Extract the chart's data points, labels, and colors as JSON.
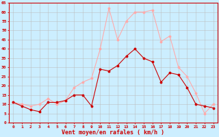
{
  "hours": [
    0,
    1,
    2,
    3,
    4,
    5,
    6,
    7,
    8,
    9,
    10,
    11,
    12,
    13,
    14,
    15,
    16,
    17,
    18,
    19,
    20,
    21,
    22,
    23
  ],
  "wind_mean": [
    11,
    9,
    7,
    6,
    11,
    11,
    12,
    15,
    15,
    9,
    29,
    28,
    31,
    36,
    40,
    35,
    33,
    22,
    27,
    26,
    19,
    10,
    9,
    8
  ],
  "wind_gust": [
    11,
    10,
    9,
    10,
    13,
    10,
    12,
    19,
    22,
    24,
    40,
    62,
    45,
    55,
    60,
    60,
    61,
    44,
    47,
    30,
    25,
    16,
    5,
    10
  ],
  "color_mean": "#cc0000",
  "color_gust": "#ffaaaa",
  "bg_color": "#cceeff",
  "grid_color": "#bbbbbb",
  "xlabel": "Vent moyen/en rafales ( km/h )",
  "xlabel_color": "#cc0000",
  "tick_color": "#cc0000",
  "ylim": [
    0,
    65
  ],
  "yticks": [
    0,
    5,
    10,
    15,
    20,
    25,
    30,
    35,
    40,
    45,
    50,
    55,
    60,
    65
  ]
}
